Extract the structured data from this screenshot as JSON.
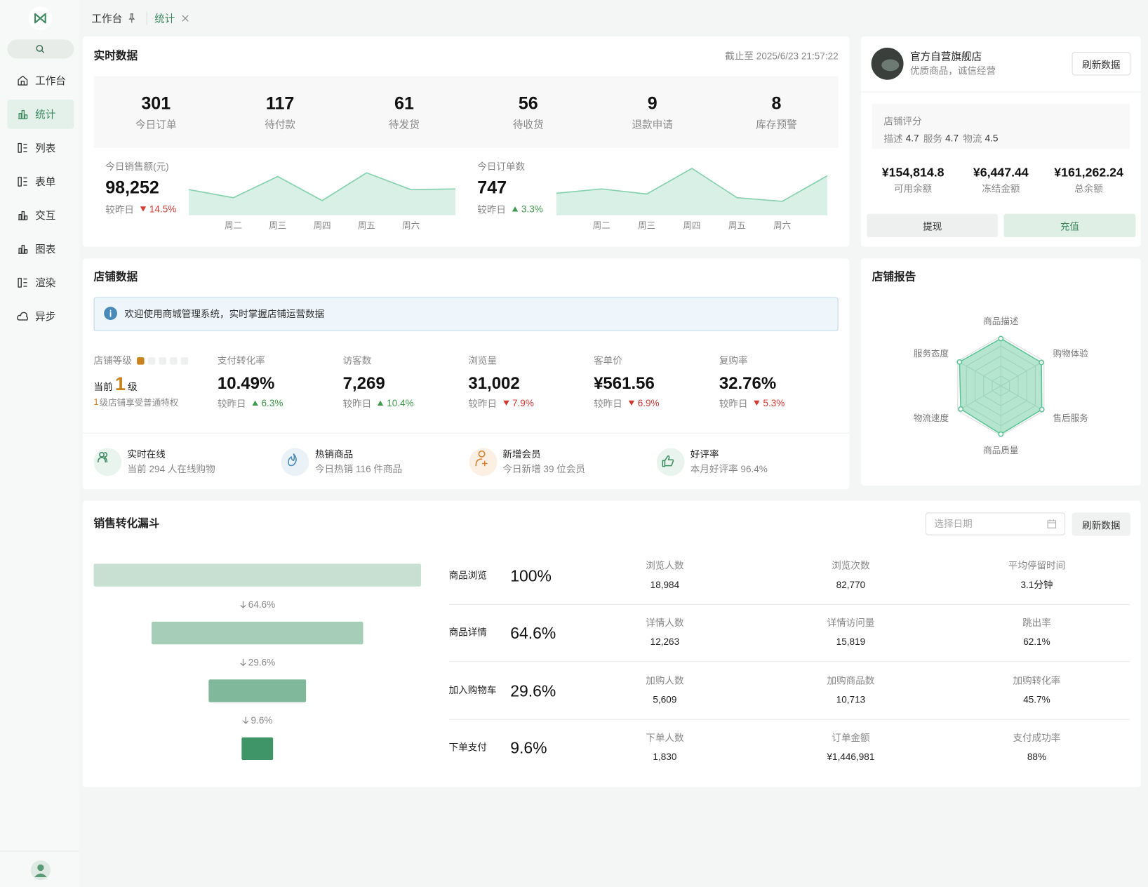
{
  "sidebar": {
    "menu": [
      "工作台",
      "统计",
      "列表",
      "表单",
      "交互",
      "图表",
      "渲染",
      "异步"
    ],
    "active": 1
  },
  "tabs": {
    "items": [
      "工作台",
      "统计"
    ],
    "active": 1
  },
  "realtime": {
    "title": "实时数据",
    "timestamp": "截止至 2025/6/23 21:57:22",
    "stats": [
      {
        "value": "301",
        "label": "今日订单"
      },
      {
        "value": "117",
        "label": "待付款"
      },
      {
        "value": "61",
        "label": "待发货"
      },
      {
        "value": "56",
        "label": "待收货"
      },
      {
        "value": "9",
        "label": "退款申请"
      },
      {
        "value": "8",
        "label": "库存预警"
      }
    ],
    "trends": [
      {
        "total": "98,252",
        "compare": "较昨日",
        "change": "14.5%",
        "direction": "down"
      },
      {
        "total": "747",
        "compare": "较昨日",
        "change": "3.3%",
        "direction": "up"
      }
    ]
  },
  "shop": {
    "name": "官方自营旗舰店",
    "slogan": "优质商品，诚信经营",
    "refresh": "刷新数据",
    "rating_title": "店铺评分",
    "ratings": [
      {
        "label": "描述",
        "value": "4.7"
      },
      {
        "label": "服务",
        "value": "4.7"
      },
      {
        "label": "物流",
        "value": "4.5"
      }
    ],
    "balances": [
      {
        "value": "¥154,814.8",
        "label": "可用余额"
      },
      {
        "value": "¥6,447.44",
        "label": "冻结金额"
      },
      {
        "value": "¥161,262.24",
        "label": "总余额"
      }
    ],
    "actions": [
      "提现",
      "充值"
    ]
  },
  "store": {
    "title": "店铺数据",
    "notice": "欢迎使用商城管理系统，实时掌握店铺运营数据",
    "level": {
      "label": "店铺等级",
      "prefix": "当前",
      "value": "1",
      "unit": "级",
      "max": 5,
      "note_level": "1",
      "note": "级店铺享受普通特权"
    },
    "metrics": [
      {
        "label": "支付转化率",
        "value": "10.49%",
        "compare": "较昨日",
        "change": "6.3%",
        "direction": "up"
      },
      {
        "label": "访客数",
        "value": "7,269",
        "compare": "较昨日",
        "change": "10.4%",
        "direction": "up"
      },
      {
        "label": "浏览量",
        "value": "31,002",
        "compare": "较昨日",
        "change": "7.9%",
        "direction": "down"
      },
      {
        "label": "客单价",
        "value": "¥561.56",
        "compare": "较昨日",
        "change": "6.9%",
        "direction": "down"
      },
      {
        "label": "复购率",
        "value": "32.76%",
        "compare": "较昨日",
        "change": "5.3%",
        "direction": "down"
      }
    ],
    "features": [
      {
        "title": "实时在线",
        "desc": "当前 294 人在线购物"
      },
      {
        "title": "热销商品",
        "desc": "今日热销 116 件商品"
      },
      {
        "title": "新增会员",
        "desc": "今日新增 39 位会员"
      },
      {
        "title": "好评率",
        "desc": "本月好评率 96.4%"
      }
    ]
  },
  "report": {
    "title": "店铺报告"
  },
  "funnel": {
    "title": "销售转化漏斗",
    "date_placeholder": "选择日期",
    "refresh": "刷新数据",
    "rows": [
      [
        {
          "label": "浏览人数",
          "value": "18,984"
        },
        {
          "label": "浏览次数",
          "value": "82,770"
        },
        {
          "label": "平均停留时间",
          "value": "3.1分钟"
        }
      ],
      [
        {
          "label": "详情人数",
          "value": "12,263"
        },
        {
          "label": "详情访问量",
          "value": "15,819"
        },
        {
          "label": "跳出率",
          "value": "62.1%"
        }
      ],
      [
        {
          "label": "加购人数",
          "value": "5,609"
        },
        {
          "label": "加购商品数",
          "value": "10,713"
        },
        {
          "label": "加购转化率",
          "value": "45.7%"
        }
      ],
      [
        {
          "label": "下单人数",
          "value": "1,830"
        },
        {
          "label": "订单金额",
          "value": "¥1,446,981"
        },
        {
          "label": "支付成功率",
          "value": "88%"
        }
      ]
    ]
  },
  "chart_data": [
    {
      "type": "area",
      "title": "今日销售额(元)",
      "categories": [
        null,
        "周二",
        "周三",
        "周四",
        "周五",
        "周六",
        null
      ],
      "values": [
        35,
        24,
        53,
        20,
        58,
        35,
        36
      ],
      "ylim": [
        0,
        70
      ],
      "color": "#86d1ae"
    },
    {
      "type": "area",
      "title": "今日订单数",
      "categories": [
        null,
        "周二",
        "周三",
        "周四",
        "周五",
        "周六",
        null
      ],
      "values": [
        30,
        36,
        29,
        64,
        24,
        19,
        54
      ],
      "ylim": [
        0,
        70
      ],
      "color": "#86d1ae"
    },
    {
      "type": "radar",
      "categories": [
        "商品描述",
        "购物体验",
        "售后服务",
        "商品质量",
        "物流速度",
        "服务态度"
      ],
      "values": [
        95,
        94,
        95,
        97,
        93,
        96
      ],
      "rlim": [
        0,
        100
      ],
      "rticks": [
        20,
        40,
        60,
        80,
        100
      ],
      "color": "#5cc595"
    },
    {
      "type": "funnel",
      "categories": [
        "商品浏览",
        "商品详情",
        "加入购物车",
        "下单支付"
      ],
      "values": [
        100,
        64.6,
        29.6,
        9.6
      ],
      "value_labels": [
        "100%",
        "64.6%",
        "29.6%",
        "9.6%"
      ],
      "xlim": [
        0,
        100
      ],
      "colors": [
        "#c8e0d2",
        "#a6cdb7",
        "#7fb89a",
        "#3f9468"
      ]
    }
  ]
}
